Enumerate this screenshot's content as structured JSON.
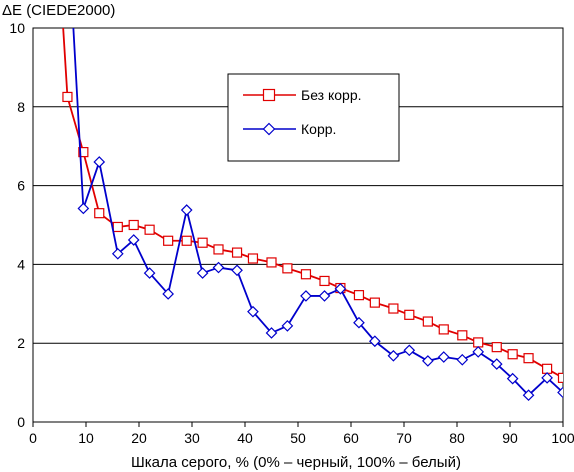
{
  "chart_data": {
    "type": "line",
    "title": "",
    "ylabel": "ΔE (CIEDE2000)",
    "xlabel": "Шкала серого, % (0% – черный, 100% – белый)",
    "xlim": [
      0,
      100
    ],
    "ylim": [
      0,
      10
    ],
    "xticks": [
      0,
      10,
      20,
      30,
      40,
      50,
      60,
      70,
      80,
      90,
      100
    ],
    "yticks": [
      0,
      2,
      4,
      6,
      8,
      10
    ],
    "grid": "horizontal",
    "legend_position": "top-right",
    "series": [
      {
        "name": "Без корр.",
        "color": "#e00000",
        "marker": "square",
        "x": [
          5,
          6.5,
          9.5,
          12.5,
          16,
          19,
          22,
          25.5,
          29,
          32,
          35,
          38.5,
          41.5,
          45,
          48,
          51.5,
          55,
          58,
          61.5,
          64.5,
          68,
          71,
          74.5,
          77.5,
          81,
          84,
          87.5,
          90.5,
          93.5,
          97,
          100
        ],
        "y": [
          11.5,
          8.25,
          6.85,
          5.3,
          4.95,
          5.0,
          4.88,
          4.6,
          4.6,
          4.55,
          4.38,
          4.3,
          4.15,
          4.05,
          3.9,
          3.75,
          3.58,
          3.4,
          3.22,
          3.03,
          2.88,
          2.72,
          2.55,
          2.35,
          2.2,
          2.02,
          1.9,
          1.72,
          1.62,
          1.35,
          1.12
        ]
      },
      {
        "name": "Корр.",
        "color": "#0000cc",
        "marker": "diamond",
        "x": [
          7,
          9.5,
          12.5,
          16,
          19,
          22,
          25.5,
          29,
          32,
          35,
          38.5,
          41.5,
          45,
          48,
          51.5,
          55,
          58,
          61.5,
          64.5,
          68,
          71,
          74.5,
          77.5,
          81,
          84,
          87.5,
          90.5,
          93.5,
          97,
          100
        ],
        "y": [
          11.5,
          5.42,
          6.6,
          4.27,
          4.62,
          3.78,
          3.25,
          5.38,
          3.78,
          3.92,
          3.85,
          2.8,
          2.26,
          2.44,
          3.2,
          3.2,
          3.38,
          2.52,
          2.05,
          1.68,
          1.82,
          1.55,
          1.65,
          1.58,
          1.78,
          1.47,
          1.1,
          0.68,
          1.12,
          0.75
        ]
      }
    ]
  }
}
